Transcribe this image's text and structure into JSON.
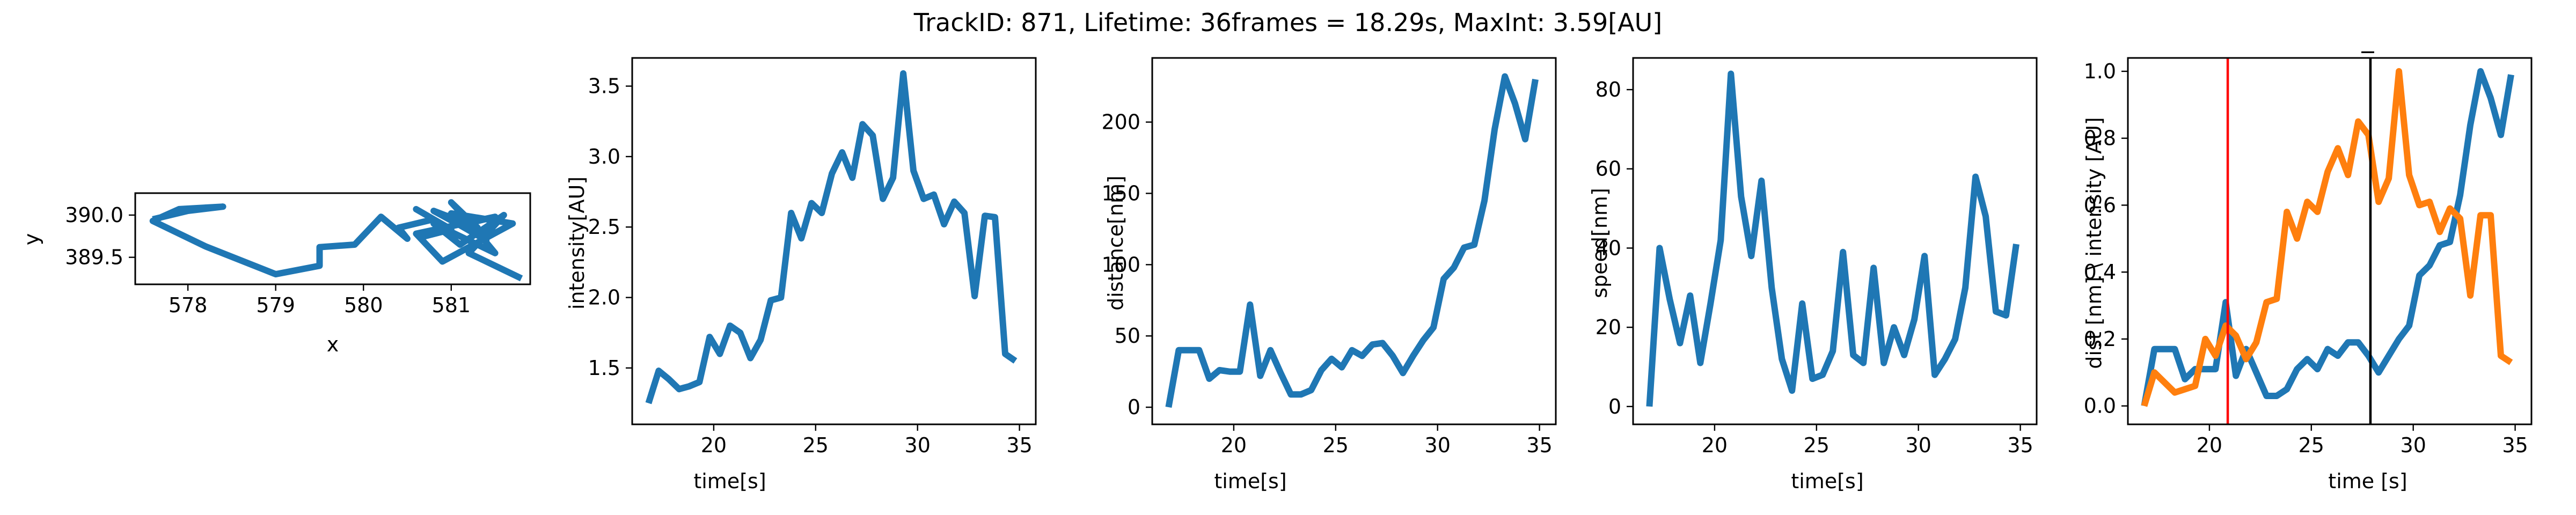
{
  "figure": {
    "title": "TrackID: 871, Lifetime: 36frames = 18.29s, MaxInt: 3.59[AU]"
  },
  "colors": {
    "blue": "#1f77b4",
    "orange": "#ff7f0e",
    "red": "#ff0000",
    "black": "#000000"
  },
  "chart_data": [
    {
      "type": "line",
      "xlabel": "x",
      "ylabel": "y",
      "xlim": [
        577.4,
        581.9
      ],
      "ylim": [
        389.18,
        390.26
      ],
      "xticks": [
        578,
        579,
        580,
        581
      ],
      "xtick_labels": [
        "578",
        "579",
        "580",
        "581"
      ],
      "yticks": [
        389.5,
        390.0
      ],
      "ytick_labels": [
        "389.5",
        "390.0"
      ],
      "series": [
        {
          "color": "#1f77b4",
          "x": [
            577.6,
            578.0,
            578.4,
            577.9,
            577.6,
            578.2,
            579.0,
            579.5,
            579.5,
            579.9,
            580.2,
            580.5,
            580.4,
            580.8,
            580.6,
            581.0,
            580.7,
            581.2,
            580.9,
            581.4,
            581.0,
            581.3,
            580.8,
            581.1,
            581.5,
            580.6,
            580.9,
            581.7,
            581.0,
            581.3,
            581.5,
            580.8,
            581.1,
            581.6,
            581.2,
            581.8
          ],
          "y": [
            389.95,
            390.05,
            390.1,
            390.07,
            389.93,
            389.63,
            389.3,
            389.4,
            389.62,
            389.65,
            389.98,
            389.72,
            389.85,
            389.95,
            390.07,
            389.83,
            389.75,
            389.95,
            390.0,
            389.7,
            390.15,
            389.85,
            390.05,
            389.88,
            389.98,
            389.78,
            389.45,
            389.9,
            390.02,
            389.8,
            389.55,
            389.9,
            389.65,
            390.0,
            389.55,
            389.25
          ]
        }
      ]
    },
    {
      "type": "line",
      "xlabel": "time[s]",
      "ylabel": "intensity[AU]",
      "xlim": [
        16.0,
        35.8
      ],
      "ylim": [
        1.1,
        3.7
      ],
      "xticks": [
        20,
        25,
        30,
        35
      ],
      "xtick_labels": [
        "20",
        "25",
        "30",
        "35"
      ],
      "yticks": [
        1.5,
        2.0,
        2.5,
        3.0,
        3.5
      ],
      "ytick_labels": [
        "1.5",
        "2.0",
        "2.5",
        "3.0",
        "3.5"
      ],
      "series": [
        {
          "color": "#1f77b4",
          "x": [
            16.8,
            17.3,
            17.8,
            18.3,
            18.8,
            19.3,
            19.8,
            20.3,
            20.8,
            21.3,
            21.8,
            22.3,
            22.8,
            23.3,
            23.8,
            24.3,
            24.8,
            25.3,
            25.8,
            26.3,
            26.8,
            27.3,
            27.8,
            28.3,
            28.8,
            29.3,
            29.8,
            30.3,
            30.8,
            31.3,
            31.8,
            32.3,
            32.8,
            33.3,
            33.8,
            34.3,
            34.8
          ],
          "y": [
            1.25,
            1.48,
            1.42,
            1.35,
            1.37,
            1.4,
            1.72,
            1.6,
            1.8,
            1.75,
            1.57,
            1.7,
            1.98,
            2.0,
            2.6,
            2.42,
            2.67,
            2.6,
            2.88,
            3.03,
            2.85,
            3.23,
            3.15,
            2.7,
            2.85,
            3.59,
            2.9,
            2.7,
            2.73,
            2.52,
            2.68,
            2.6,
            2.01,
            2.58,
            2.57,
            1.6,
            1.55
          ]
        }
      ]
    },
    {
      "type": "line",
      "xlabel": "time[s]",
      "ylabel": "distance[nm]",
      "xlim": [
        16.0,
        35.8
      ],
      "ylim": [
        -12,
        245
      ],
      "xticks": [
        20,
        25,
        30,
        35
      ],
      "xtick_labels": [
        "20",
        "25",
        "30",
        "35"
      ],
      "yticks": [
        0,
        50,
        100,
        150,
        200
      ],
      "ytick_labels": [
        "0",
        "50",
        "100",
        "150",
        "200"
      ],
      "series": [
        {
          "color": "#1f77b4",
          "x": [
            16.8,
            17.3,
            17.8,
            18.3,
            18.8,
            19.3,
            19.8,
            20.3,
            20.8,
            21.3,
            21.8,
            22.3,
            22.8,
            23.3,
            23.8,
            24.3,
            24.8,
            25.3,
            25.8,
            26.3,
            26.8,
            27.3,
            27.8,
            28.3,
            28.8,
            29.3,
            29.8,
            30.3,
            30.8,
            31.3,
            31.8,
            32.3,
            32.8,
            33.3,
            33.8,
            34.3,
            34.8
          ],
          "y": [
            0,
            40,
            40,
            40,
            20,
            26,
            25,
            25,
            72,
            22,
            40,
            24,
            9,
            9,
            12,
            26,
            34,
            28,
            40,
            36,
            44,
            45,
            36,
            24,
            36,
            47,
            56,
            90,
            98,
            112,
            114,
            145,
            195,
            232,
            213,
            188,
            230
          ]
        }
      ]
    },
    {
      "type": "line",
      "xlabel": "time[s]",
      "ylabel": "speed[nm]",
      "xlim": [
        16.0,
        35.8
      ],
      "ylim": [
        -4.5,
        88
      ],
      "xticks": [
        20,
        25,
        30,
        35
      ],
      "xtick_labels": [
        "20",
        "25",
        "30",
        "35"
      ],
      "yticks": [
        0,
        20,
        40,
        60,
        80
      ],
      "ytick_labels": [
        "0",
        "20",
        "40",
        "60",
        "80"
      ],
      "series": [
        {
          "color": "#1f77b4",
          "x": [
            16.8,
            17.3,
            17.8,
            18.3,
            18.8,
            19.3,
            19.8,
            20.3,
            20.8,
            21.3,
            21.8,
            22.3,
            22.8,
            23.3,
            23.8,
            24.3,
            24.8,
            25.3,
            25.8,
            26.3,
            26.8,
            27.3,
            27.8,
            28.3,
            28.8,
            29.3,
            29.8,
            30.3,
            30.8,
            31.3,
            31.8,
            32.3,
            32.8,
            33.3,
            33.8,
            34.3,
            34.8
          ],
          "y": [
            0,
            40,
            27,
            16,
            28,
            11,
            26,
            42,
            84,
            53,
            38,
            57,
            30,
            12,
            4,
            26,
            7,
            8,
            14,
            39,
            13,
            11,
            35,
            11,
            20,
            13,
            22,
            38,
            8,
            12,
            17,
            30,
            58,
            48,
            24,
            23,
            41
          ]
        }
      ]
    },
    {
      "type": "line",
      "title": "_",
      "xlabel": "time [s]",
      "ylabel": "dist [nm] \\ intensity [AU]",
      "xlim": [
        16.0,
        35.8
      ],
      "ylim": [
        -0.055,
        1.04
      ],
      "xticks": [
        20,
        25,
        30,
        35
      ],
      "xtick_labels": [
        "20",
        "25",
        "30",
        "35"
      ],
      "yticks": [
        0.0,
        0.2,
        0.4,
        0.6,
        0.8,
        1.0
      ],
      "ytick_labels": [
        "0.0",
        "0.2",
        "0.4",
        "0.6",
        "0.8",
        "1.0"
      ],
      "vlines": [
        {
          "x": 20.9,
          "color": "#ff0000"
        },
        {
          "x": 27.9,
          "color": "#000000"
        }
      ],
      "series": [
        {
          "color": "#1f77b4",
          "x": [
            16.8,
            17.3,
            17.8,
            18.3,
            18.8,
            19.3,
            19.8,
            20.3,
            20.8,
            21.3,
            21.8,
            22.3,
            22.8,
            23.3,
            23.8,
            24.3,
            24.8,
            25.3,
            25.8,
            26.3,
            26.8,
            27.3,
            27.8,
            28.3,
            28.8,
            29.3,
            29.8,
            30.3,
            30.8,
            31.3,
            31.8,
            32.3,
            32.8,
            33.3,
            33.8,
            34.3,
            34.8
          ],
          "y": [
            0.0,
            0.17,
            0.17,
            0.17,
            0.08,
            0.11,
            0.11,
            0.11,
            0.31,
            0.09,
            0.17,
            0.1,
            0.03,
            0.03,
            0.05,
            0.11,
            0.14,
            0.11,
            0.17,
            0.15,
            0.19,
            0.19,
            0.15,
            0.1,
            0.15,
            0.2,
            0.24,
            0.39,
            0.42,
            0.48,
            0.49,
            0.63,
            0.84,
            1.0,
            0.92,
            0.81,
            0.99
          ]
        },
        {
          "color": "#ff7f0e",
          "x": [
            16.8,
            17.3,
            17.8,
            18.3,
            18.8,
            19.3,
            19.8,
            20.3,
            20.8,
            21.3,
            21.8,
            22.3,
            22.8,
            23.3,
            23.8,
            24.3,
            24.8,
            25.3,
            25.8,
            26.3,
            26.8,
            27.3,
            27.8,
            28.3,
            28.8,
            29.3,
            29.8,
            30.3,
            30.8,
            31.3,
            31.8,
            32.3,
            32.8,
            33.3,
            33.8,
            34.3,
            34.8
          ],
          "y": [
            0.0,
            0.1,
            0.07,
            0.04,
            0.05,
            0.06,
            0.2,
            0.15,
            0.24,
            0.21,
            0.14,
            0.19,
            0.31,
            0.32,
            0.58,
            0.5,
            0.61,
            0.58,
            0.7,
            0.77,
            0.69,
            0.85,
            0.81,
            0.61,
            0.68,
            1.0,
            0.69,
            0.6,
            0.61,
            0.52,
            0.59,
            0.56,
            0.33,
            0.57,
            0.57,
            0.15,
            0.13
          ]
        }
      ]
    }
  ]
}
